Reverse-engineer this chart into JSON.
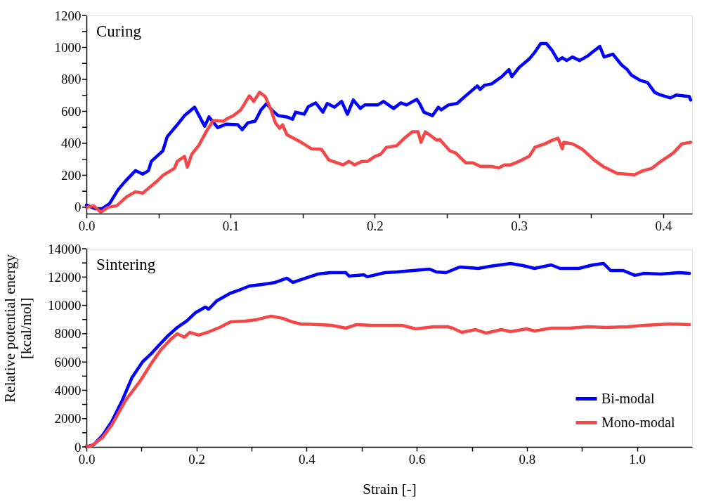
{
  "chart_data": [
    {
      "type": "line",
      "annotations": [
        "Curing"
      ],
      "xlim": [
        0,
        0.42
      ],
      "ylim": [
        -40,
        1200
      ],
      "xticks": [
        {
          "value": 0,
          "label": "0.0"
        },
        {
          "value": 0.05,
          "label": null
        },
        0.1,
        {
          "value": 0.15,
          "label": null
        },
        0.2,
        {
          "value": 0.25,
          "label": null
        },
        0.3,
        {
          "value": 0.35,
          "label": null
        },
        0.4
      ],
      "yticks": [
        0,
        {
          "value": 100,
          "label": null
        },
        200,
        {
          "value": 300,
          "label": null
        },
        400,
        {
          "value": 500,
          "label": null
        },
        600,
        {
          "value": 700,
          "label": null
        },
        800,
        {
          "value": 900,
          "label": null
        },
        1000,
        {
          "value": 1100,
          "label": null
        },
        1200
      ],
      "grid": false,
      "legend": false,
      "marker": "none",
      "line_style": "solid",
      "series": [
        {
          "color": "#0000ff",
          "x": [
            0,
            0.006,
            0.011,
            0.016,
            0.022,
            0.027,
            0.034,
            0.039,
            0.043,
            0.045,
            0.053,
            0.056,
            0.063,
            0.068,
            0.075,
            0.082,
            0.085,
            0.091,
            0.097,
            0.105,
            0.108,
            0.112,
            0.117,
            0.121,
            0.125,
            0.129,
            0.133,
            0.139,
            0.143,
            0.145,
            0.151,
            0.154,
            0.159,
            0.164,
            0.167,
            0.172,
            0.177,
            0.181,
            0.185,
            0.19,
            0.193,
            0.202,
            0.206,
            0.213,
            0.218,
            0.222,
            0.229,
            0.231,
            0.234,
            0.24,
            0.244,
            0.246,
            0.251,
            0.257,
            0.263,
            0.267,
            0.271,
            0.273,
            0.276,
            0.281,
            0.288,
            0.293,
            0.295,
            0.3,
            0.307,
            0.311,
            0.315,
            0.319,
            0.323,
            0.327,
            0.33,
            0.333,
            0.337,
            0.342,
            0.348,
            0.351,
            0.356,
            0.359,
            0.365,
            0.371,
            0.375,
            0.378,
            0.384,
            0.389,
            0.394,
            0.397,
            0.405,
            0.409,
            0.414,
            0.418,
            0.419
          ],
          "values": [
            13,
            -9,
            -9,
            22,
            110,
            163,
            229,
            207,
            229,
            287,
            353,
            441,
            516,
            573,
            626,
            507,
            565,
            498,
            520,
            516,
            485,
            529,
            538,
            609,
            649,
            604,
            573,
            565,
            551,
            595,
            582,
            631,
            653,
            595,
            649,
            626,
            662,
            582,
            671,
            618,
            640,
            640,
            662,
            618,
            653,
            640,
            675,
            649,
            595,
            573,
            626,
            609,
            640,
            649,
            697,
            728,
            759,
            737,
            763,
            772,
            817,
            861,
            817,
            874,
            927,
            971,
            1024,
            1024,
            980,
            918,
            936,
            918,
            940,
            918,
            949,
            971,
            1006,
            940,
            958,
            891,
            861,
            826,
            794,
            781,
            719,
            706,
            684,
            702,
            697,
            693,
            671
          ]
        },
        {
          "color": "#f44848",
          "x": [
            0,
            0.005,
            0.01,
            0.015,
            0.021,
            0.028,
            0.034,
            0.039,
            0.049,
            0.053,
            0.061,
            0.063,
            0.068,
            0.07,
            0.073,
            0.078,
            0.083,
            0.088,
            0.095,
            0.097,
            0.102,
            0.107,
            0.113,
            0.116,
            0.12,
            0.124,
            0.128,
            0.131,
            0.134,
            0.136,
            0.139,
            0.149,
            0.156,
            0.163,
            0.168,
            0.178,
            0.182,
            0.186,
            0.191,
            0.195,
            0.2,
            0.204,
            0.208,
            0.215,
            0.22,
            0.226,
            0.23,
            0.232,
            0.235,
            0.243,
            0.245,
            0.252,
            0.256,
            0.263,
            0.268,
            0.273,
            0.28,
            0.286,
            0.29,
            0.294,
            0.3,
            0.307,
            0.311,
            0.318,
            0.323,
            0.327,
            0.33,
            0.331,
            0.337,
            0.344,
            0.352,
            0.359,
            0.368,
            0.38,
            0.386,
            0.392,
            0.397,
            0.407,
            0.413,
            0.419
          ],
          "values": [
            0,
            9,
            -31,
            0,
            9,
            66,
            97,
            88,
            163,
            199,
            243,
            287,
            318,
            251,
            331,
            388,
            472,
            543,
            538,
            551,
            573,
            609,
            697,
            662,
            719,
            693,
            609,
            529,
            494,
            516,
            454,
            406,
            366,
            362,
            296,
            265,
            287,
            265,
            287,
            287,
            318,
            331,
            375,
            384,
            428,
            472,
            472,
            406,
            472,
            419,
            424,
            353,
            340,
            278,
            278,
            256,
            256,
            247,
            265,
            265,
            287,
            318,
            375,
            397,
            419,
            432,
            366,
            406,
            397,
            362,
            296,
            251,
            212,
            203,
            229,
            243,
            278,
            340,
            397,
            406
          ]
        }
      ]
    },
    {
      "type": "line",
      "annotations": [
        "Sintering"
      ],
      "xlabel": "Strain [-]",
      "ylabel": "Relative potential energy\n[kcal/mol]",
      "xlim": [
        0,
        1.1
      ],
      "ylim": [
        0,
        14000
      ],
      "xticks": [
        {
          "value": 0,
          "label": "0.0"
        },
        {
          "value": 0.1,
          "label": null
        },
        0.2,
        {
          "value": 0.3,
          "label": null
        },
        0.4,
        {
          "value": 0.5,
          "label": null
        },
        0.6,
        {
          "value": 0.7,
          "label": null
        },
        0.8,
        {
          "value": 0.9,
          "label": null
        },
        {
          "value": 1,
          "label": "1.0"
        }
      ],
      "yticks": [
        0,
        {
          "value": 1000,
          "label": null
        },
        2000,
        {
          "value": 3000,
          "label": null
        },
        4000,
        {
          "value": 5000,
          "label": null
        },
        6000,
        {
          "value": 7000,
          "label": null
        },
        8000,
        {
          "value": 9000,
          "label": null
        },
        10000,
        {
          "value": 11000,
          "label": null
        },
        12000,
        {
          "value": 13000,
          "label": null
        },
        14000
      ],
      "grid": false,
      "legend": "bottom right",
      "marker": "none",
      "line_style": "solid",
      "series": [
        {
          "name": "Bi-modal",
          "color": "#0000ff",
          "x": [
            0,
            0.013,
            0.029,
            0.046,
            0.065,
            0.083,
            0.102,
            0.118,
            0.131,
            0.148,
            0.165,
            0.182,
            0.198,
            0.216,
            0.222,
            0.237,
            0.262,
            0.28,
            0.296,
            0.318,
            0.343,
            0.364,
            0.375,
            0.394,
            0.42,
            0.443,
            0.471,
            0.477,
            0.504,
            0.51,
            0.542,
            0.564,
            0.623,
            0.636,
            0.653,
            0.678,
            0.712,
            0.733,
            0.77,
            0.793,
            0.814,
            0.844,
            0.86,
            0.894,
            0.92,
            0.939,
            0.952,
            0.975,
            0.996,
            1.013,
            1.043,
            1.076,
            1.095
          ],
          "values": [
            0,
            150,
            800,
            1790,
            3280,
            4920,
            6010,
            6600,
            7150,
            7850,
            8440,
            8890,
            9480,
            9880,
            9730,
            10330,
            10870,
            11120,
            11370,
            11470,
            11620,
            11920,
            11620,
            11870,
            12210,
            12310,
            12310,
            12070,
            12160,
            12020,
            12310,
            12360,
            12560,
            12360,
            12310,
            12710,
            12610,
            12760,
            12960,
            12810,
            12610,
            12860,
            12610,
            12610,
            12860,
            12960,
            12460,
            12460,
            12120,
            12260,
            12210,
            12310,
            12260
          ]
        },
        {
          "name": "Mono-modal",
          "color": "#f44848",
          "x": [
            0,
            0.01,
            0.029,
            0.046,
            0.071,
            0.097,
            0.118,
            0.135,
            0.153,
            0.165,
            0.178,
            0.188,
            0.204,
            0.223,
            0.242,
            0.262,
            0.288,
            0.309,
            0.335,
            0.356,
            0.373,
            0.389,
            0.424,
            0.445,
            0.471,
            0.491,
            0.517,
            0.542,
            0.573,
            0.598,
            0.631,
            0.656,
            0.665,
            0.682,
            0.707,
            0.726,
            0.754,
            0.77,
            0.799,
            0.814,
            0.844,
            0.878,
            0.911,
            0.945,
            0.983,
            1.013,
            1.06,
            1.095
          ],
          "values": [
            0,
            100,
            650,
            1540,
            3280,
            4620,
            5910,
            6850,
            7600,
            7990,
            7750,
            8090,
            7900,
            8140,
            8440,
            8840,
            8890,
            8990,
            9240,
            9090,
            8840,
            8690,
            8640,
            8590,
            8390,
            8640,
            8590,
            8590,
            8590,
            8340,
            8490,
            8490,
            8390,
            8090,
            8290,
            8040,
            8290,
            8140,
            8340,
            8190,
            8390,
            8390,
            8490,
            8440,
            8490,
            8590,
            8690,
            8640
          ]
        }
      ]
    }
  ]
}
